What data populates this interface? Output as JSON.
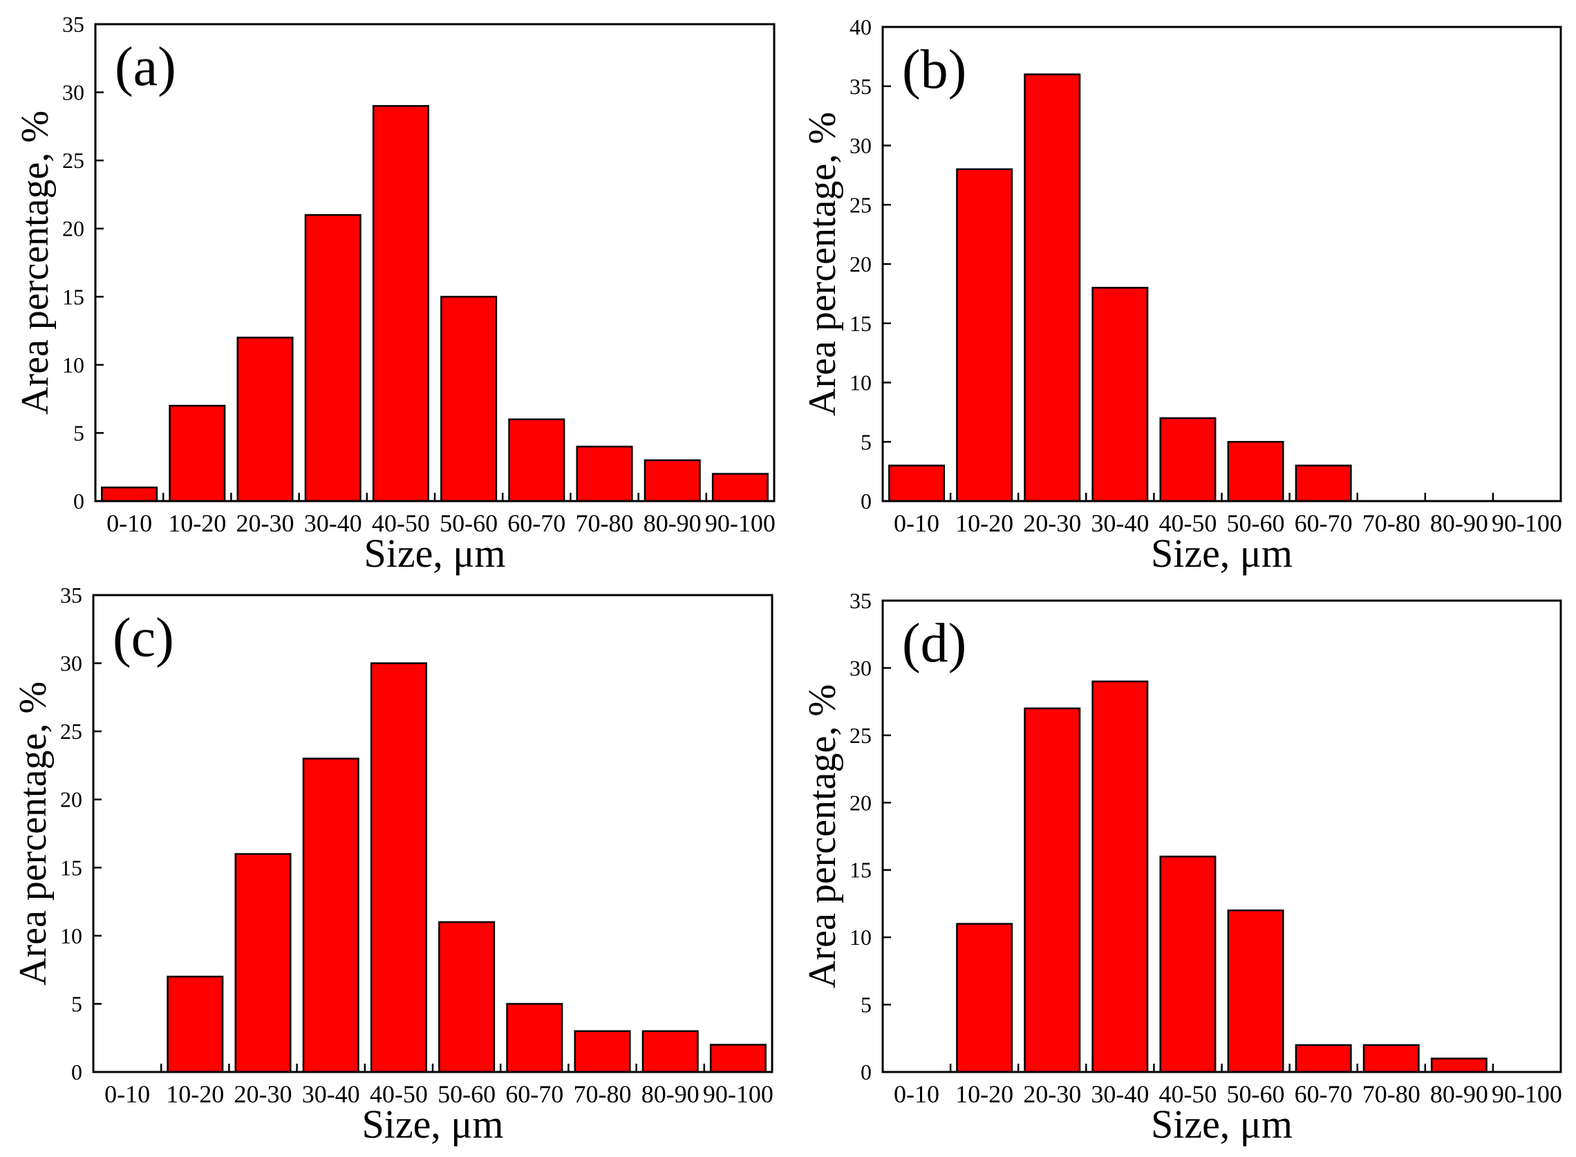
{
  "figure": {
    "colors": {
      "bar_fill": "#ff0000",
      "bar_edge": "#000000",
      "axis": "#000000",
      "background": "#ffffff"
    }
  },
  "chart_data": [
    {
      "type": "bar",
      "panel_label": "(a)",
      "categories": [
        "0-10",
        "10-20",
        "20-30",
        "30-40",
        "40-50",
        "50-60",
        "60-70",
        "70-80",
        "80-90",
        "90-100"
      ],
      "values": [
        1,
        7,
        12,
        21,
        29,
        15,
        6,
        4,
        3,
        2
      ],
      "xlabel": "Size, μm",
      "ylabel": "Area percentage, %",
      "ylim": [
        0,
        35
      ],
      "yticks": [
        0,
        5,
        10,
        15,
        20,
        25,
        30,
        35
      ]
    },
    {
      "type": "bar",
      "panel_label": "(b)",
      "categories": [
        "0-10",
        "10-20",
        "20-30",
        "30-40",
        "40-50",
        "50-60",
        "60-70",
        "70-80",
        "80-90",
        "90-100"
      ],
      "values": [
        3,
        28,
        36,
        18,
        7,
        5,
        3,
        0,
        0,
        0
      ],
      "xlabel": "Size, μm",
      "ylabel": "Area percentage, %",
      "ylim": [
        0,
        40
      ],
      "yticks": [
        0,
        5,
        10,
        15,
        20,
        25,
        30,
        35,
        40
      ]
    },
    {
      "type": "bar",
      "panel_label": "(c)",
      "categories": [
        "0-10",
        "10-20",
        "20-30",
        "30-40",
        "40-50",
        "50-60",
        "60-70",
        "70-80",
        "80-90",
        "90-100"
      ],
      "values": [
        0,
        7,
        16,
        23,
        30,
        11,
        5,
        3,
        3,
        2
      ],
      "xlabel": "Size, μm",
      "ylabel": "Area percentage, %",
      "ylim": [
        0,
        35
      ],
      "yticks": [
        0,
        5,
        10,
        15,
        20,
        25,
        30,
        35
      ]
    },
    {
      "type": "bar",
      "panel_label": "(d)",
      "categories": [
        "0-10",
        "10-20",
        "20-30",
        "30-40",
        "40-50",
        "50-60",
        "60-70",
        "70-80",
        "80-90",
        "90-100"
      ],
      "values": [
        0,
        11,
        27,
        29,
        16,
        12,
        2,
        2,
        1,
        0
      ],
      "xlabel": "Size, μm",
      "ylabel": "Area percentage, %",
      "ylim": [
        0,
        35
      ],
      "yticks": [
        0,
        5,
        10,
        15,
        20,
        25,
        30,
        35
      ]
    }
  ]
}
